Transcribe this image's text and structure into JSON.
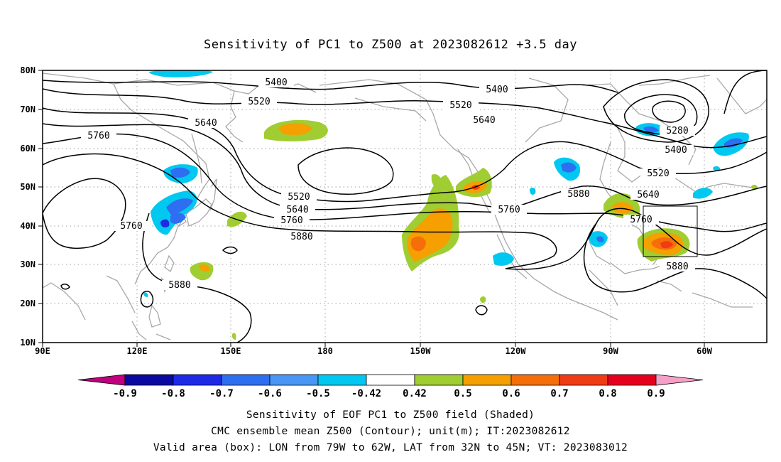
{
  "title": "Sensitivity of PC1 to Z500 at 2023082612 +3.5 day",
  "map": {
    "lon_range": [
      "90E",
      "40W"
    ],
    "lat_range": [
      "10N",
      "80N"
    ],
    "x_ticks": [
      "90E",
      "120E",
      "150E",
      "180",
      "150W",
      "120W",
      "90W",
      "60W"
    ],
    "y_ticks": [
      "80N",
      "70N",
      "60N",
      "50N",
      "40N",
      "30N",
      "20N",
      "10N"
    ],
    "gridlines": "dotted",
    "coastline_color": "#a8a8a8",
    "contour_color": "#000000"
  },
  "contour_labels": [
    {
      "text": "5400",
      "where": "Siberia north"
    },
    {
      "text": "5400",
      "where": "Alaska north"
    },
    {
      "text": "5520",
      "where": "Siberia"
    },
    {
      "text": "5520",
      "where": "Bering Sea"
    },
    {
      "text": "5520",
      "where": "Pacific trough"
    },
    {
      "text": "5640",
      "where": "Okhotsk"
    },
    {
      "text": "5640",
      "where": "Alaska"
    },
    {
      "text": "5640",
      "where": "Pacific trough"
    },
    {
      "text": "5760",
      "where": "Manchuria"
    },
    {
      "text": "5760",
      "where": "Japan"
    },
    {
      "text": "5760",
      "where": "North Pacific"
    },
    {
      "text": "5760",
      "where": "Pacific Northwest"
    },
    {
      "text": "5880",
      "where": "North Pacific"
    },
    {
      "text": "5880",
      "where": "Philippine Sea"
    },
    {
      "text": "5880",
      "where": "Central US"
    },
    {
      "text": "5880",
      "where": "Western Atlantic"
    },
    {
      "text": "5280",
      "where": "Hudson Bay"
    },
    {
      "text": "5400",
      "where": "Labrador"
    },
    {
      "text": "5520",
      "where": "Great Lakes"
    },
    {
      "text": "5640",
      "where": "Northeast US"
    },
    {
      "text": "5760",
      "where": "US East Coast"
    }
  ],
  "valid_box": {
    "lon_from": "79W",
    "lon_to": "62W",
    "lat_from": "32N",
    "lat_to": "45N"
  },
  "colorbar": {
    "levels": [
      "-0.9",
      "-0.8",
      "-0.7",
      "-0.6",
      "-0.5",
      "-0.42",
      "0.42",
      "0.5",
      "0.6",
      "0.7",
      "0.8",
      "0.9"
    ],
    "colors": [
      "#c0007f",
      "#0a0aa0",
      "#1e2ae6",
      "#2e6ef0",
      "#4a96f5",
      "#00c8f0",
      "#ffffff",
      "#a0cd32",
      "#f5a000",
      "#f56e0a",
      "#f03c14",
      "#e6001e",
      "#f5a0c8"
    ]
  },
  "caption": {
    "line1": "Sensitivity of EOF PC1 to Z500 field (Shaded)",
    "line2": "CMC ensemble mean Z500 (Contour); unit(m); IT:2023082612",
    "line3": "Valid area (box): LON from 79W to 62W, LAT from 32N to 45N; VT: 2023083012"
  }
}
